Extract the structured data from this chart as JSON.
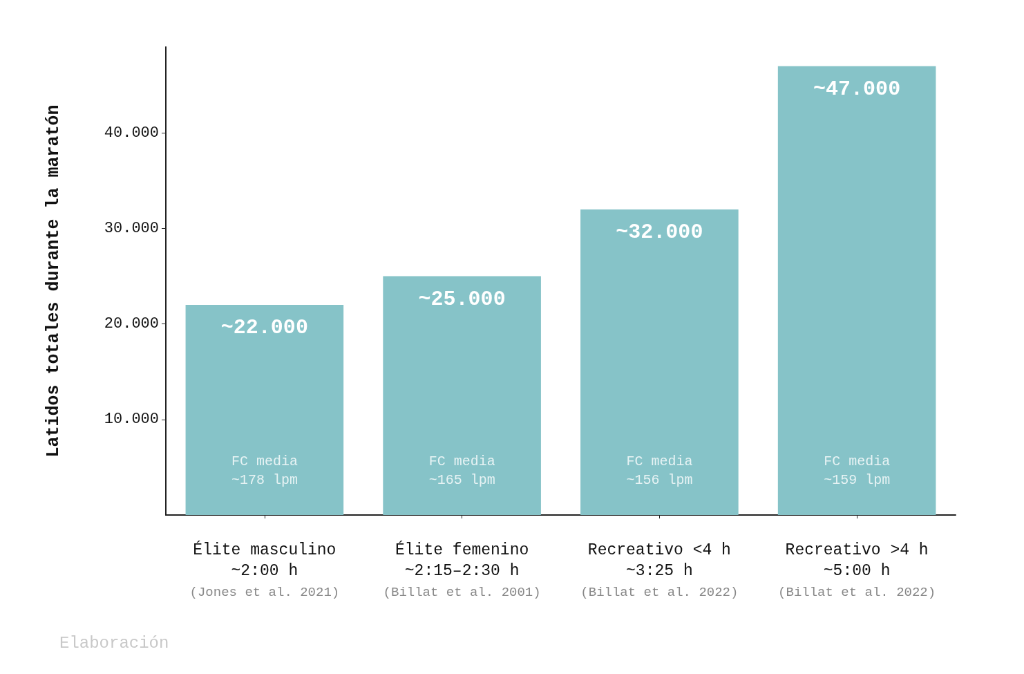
{
  "chart_data": {
    "type": "bar",
    "ylabel": "Latidos totales durante la maratón",
    "categories": [
      "Élite masculino\n~2:00 h\n(Jones et al. 2021)",
      "Élite femenino\n~2:15–2:30 h\n(Billat et al. 2001)",
      "Recreativo <4 h\n~3:25 h\n(Billat et al. 2022)",
      "Recreativo >4 h\n~5:00 h\n(Billat et al. 2022)"
    ],
    "values": [
      22000,
      25000,
      32000,
      47000
    ],
    "value_labels": [
      "~22.000",
      "~25.000",
      "~32.000",
      "~47.000"
    ],
    "color": "#86c3c8",
    "ylim": [
      0,
      49000
    ],
    "yticks": [
      {
        "value": 10000,
        "label": "10.000"
      },
      {
        "value": 20000,
        "label": "20.000"
      },
      {
        "value": 30000,
        "label": "30.000"
      },
      {
        "value": 40000,
        "label": "40.000"
      }
    ],
    "annotations": [
      "FC media\n~178 lpm",
      "FC media\n~165 lpm",
      "FC media\n~156 lpm",
      "FC media\n~159 lpm",
      "Elaboración"
    ],
    "grid": false
  }
}
